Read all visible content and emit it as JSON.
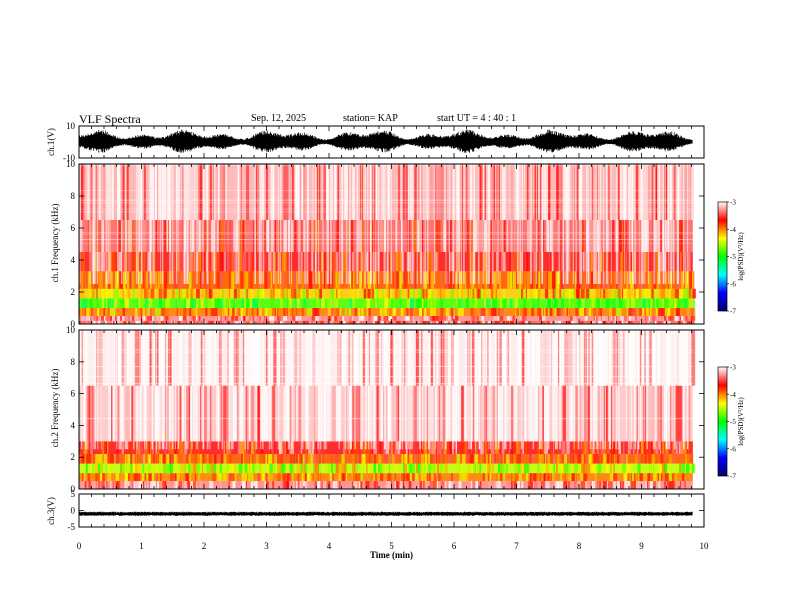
{
  "header": {
    "title": "VLF Spectra",
    "date": "Sep. 12, 2025",
    "station": "station= KAP",
    "start": "start UT = 4 : 40 : 1"
  },
  "chart_data": [
    {
      "type": "line",
      "name": "ch1-waveform",
      "ylabel": "ch.1(V)",
      "ylim": [
        -10,
        10
      ],
      "yticks": [
        "10",
        "-10"
      ],
      "x_range": [
        0,
        9.82
      ],
      "description_values": {
        "approx_amplitude_V": [
          -7,
          8
        ]
      }
    },
    {
      "type": "heatmap",
      "name": "ch1-spectrogram",
      "ylabel": "ch.1 Frequency (kHz)",
      "ylim": [
        0,
        10
      ],
      "yticks": [
        "0",
        "2",
        "4",
        "6",
        "8",
        "10"
      ],
      "x_range": [
        0,
        9.82
      ],
      "bands": [
        {
          "f0": 0.0,
          "f1": 0.2,
          "level": -3.4
        },
        {
          "f0": 0.2,
          "f1": 0.5,
          "level": -3.3
        },
        {
          "f0": 0.5,
          "f1": 1.0,
          "level": -4.0
        },
        {
          "f0": 1.0,
          "f1": 1.6,
          "level": -4.8
        },
        {
          "f0": 1.6,
          "f1": 2.2,
          "level": -4.2
        },
        {
          "f0": 2.2,
          "f1": 3.3,
          "level": -3.9
        },
        {
          "f0": 3.3,
          "f1": 4.5,
          "level": -3.6
        },
        {
          "f0": 4.5,
          "f1": 6.5,
          "level": -3.4
        },
        {
          "f0": 6.5,
          "f1": 10.0,
          "level": -3.2
        }
      ]
    },
    {
      "type": "heatmap",
      "name": "ch2-spectrogram",
      "ylabel": "ch.2 Frequency (kHz)",
      "ylim": [
        0,
        10
      ],
      "yticks": [
        "0",
        "2",
        "4",
        "6",
        "8",
        "10"
      ],
      "x_range": [
        0,
        9.82
      ],
      "bands": [
        {
          "f0": 0.0,
          "f1": 0.5,
          "level": -3.3
        },
        {
          "f0": 0.5,
          "f1": 1.0,
          "level": -4.0
        },
        {
          "f0": 1.0,
          "f1": 1.6,
          "level": -4.5
        },
        {
          "f0": 1.6,
          "f1": 2.2,
          "level": -3.9
        },
        {
          "f0": 2.2,
          "f1": 3.0,
          "level": -3.6
        },
        {
          "f0": 3.0,
          "f1": 6.5,
          "level": -3.15
        },
        {
          "f0": 6.5,
          "f1": 10.0,
          "level": -3.05
        }
      ]
    },
    {
      "type": "line",
      "name": "ch3-waveform",
      "ylabel": "ch.3(V)",
      "ylim": [
        -5,
        5
      ],
      "yticks": [
        "5",
        "0",
        "-5"
      ],
      "x_range": [
        0,
        9.82
      ],
      "description_values": {
        "approx_amplitude_V": [
          -1.5,
          -0.5
        ]
      }
    }
  ],
  "xaxis": {
    "label": "Time (min)",
    "range": [
      0,
      10
    ],
    "ticks": [
      "0",
      "1",
      "2",
      "3",
      "4",
      "5",
      "6",
      "7",
      "8",
      "9",
      "10"
    ]
  },
  "colorbar": {
    "label": "log(PSD)(V²/Hz)",
    "range": [
      -7,
      -3
    ],
    "ticks": [
      "-3",
      "-4",
      "-5",
      "-6",
      "-7"
    ],
    "colors": [
      "#00006e",
      "#0000ff",
      "#00ffff",
      "#00ff00",
      "#ffff00",
      "#ff0000",
      "#ffffff"
    ]
  }
}
